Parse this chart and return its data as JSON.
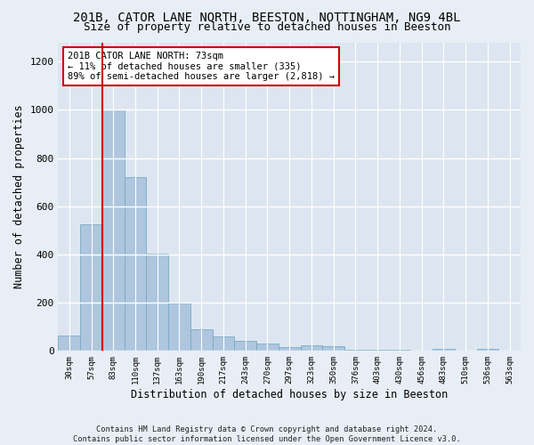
{
  "title1": "201B, CATOR LANE NORTH, BEESTON, NOTTINGHAM, NG9 4BL",
  "title2": "Size of property relative to detached houses in Beeston",
  "xlabel": "Distribution of detached houses by size in Beeston",
  "ylabel": "Number of detached properties",
  "footer": "Contains HM Land Registry data © Crown copyright and database right 2024.\nContains public sector information licensed under the Open Government Licence v3.0.",
  "bin_labels": [
    "30sqm",
    "57sqm",
    "83sqm",
    "110sqm",
    "137sqm",
    "163sqm",
    "190sqm",
    "217sqm",
    "243sqm",
    "270sqm",
    "297sqm",
    "323sqm",
    "350sqm",
    "376sqm",
    "403sqm",
    "430sqm",
    "456sqm",
    "483sqm",
    "510sqm",
    "536sqm",
    "563sqm"
  ],
  "bar_values": [
    65,
    525,
    1000,
    720,
    405,
    198,
    88,
    60,
    40,
    32,
    17,
    22,
    18,
    5,
    5,
    5,
    2,
    10,
    0,
    10,
    0
  ],
  "bar_color": "#aec6de",
  "bar_edge_color": "#7aaac8",
  "vline_x": 1.5,
  "vline_color": "#cc0000",
  "annotation_text": "201B CATOR LANE NORTH: 73sqm\n← 11% of detached houses are smaller (335)\n89% of semi-detached houses are larger (2,818) →",
  "annotation_box_color": "#cc0000",
  "ylim": [
    0,
    1280
  ],
  "yticks": [
    0,
    200,
    400,
    600,
    800,
    1000,
    1200
  ],
  "background_color": "#e8eef5",
  "plot_bg_color": "#dde6f0",
  "grid_color": "#ffffff",
  "title1_fontsize": 10,
  "title2_fontsize": 9,
  "xlabel_fontsize": 8.5,
  "ylabel_fontsize": 8.5,
  "tick_fontsize": 8,
  "annot_fontsize": 7.5
}
